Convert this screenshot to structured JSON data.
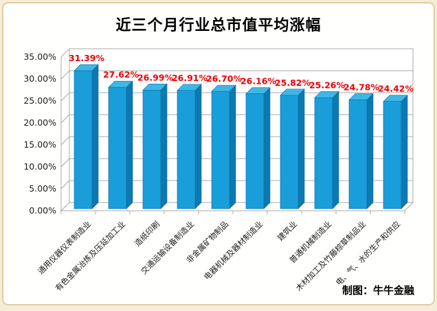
{
  "page": {
    "background": "#f6edd6",
    "panel_fill": "#fffffd",
    "panel_border": "#ddcda1"
  },
  "chart_data": {
    "type": "bar",
    "style": "3d-column",
    "title": "近三个月行业总市值平均涨幅",
    "categories": [
      "通用仪器仪表制造业",
      "有色金属冶炼及压延加工业",
      "造纸印刷",
      "交通运输设备制造业",
      "非金属矿物制品",
      "电器机械及器材制造业",
      "建筑业",
      "普通机械制造业",
      "木材加工及竹藤棕草制品业",
      "电、气、水的生产和供应"
    ],
    "values": [
      31.39,
      27.62,
      26.99,
      26.91,
      26.7,
      26.16,
      25.82,
      25.26,
      24.78,
      24.42
    ],
    "value_labels": [
      "31.39%",
      "27.62%",
      "26.99%",
      "26.91%",
      "26.70%",
      "26.16%",
      "25.82%",
      "25.26%",
      "24.78%",
      "24.42%"
    ],
    "yticks": [
      "0.00%",
      "5.00%",
      "10.00%",
      "15.00%",
      "20.00%",
      "25.00%",
      "30.00%",
      "35.00%"
    ],
    "ytick_values": [
      0,
      5,
      10,
      15,
      20,
      25,
      30,
      35
    ],
    "ylim": [
      0,
      35
    ],
    "grid": true,
    "legend": "none",
    "xlabel": "",
    "ylabel": "",
    "colors": {
      "bar_front": "#1a9ed9",
      "bar_side": "#0c79b0",
      "bar_top": "#3fb7e6",
      "bar_outline": "#0a6ca2",
      "value_label": "#ee0000",
      "grid": "#a8a8a8",
      "axis_text": "#1a1a1a"
    }
  },
  "footer": {
    "credit": "制图：牛牛金融"
  }
}
